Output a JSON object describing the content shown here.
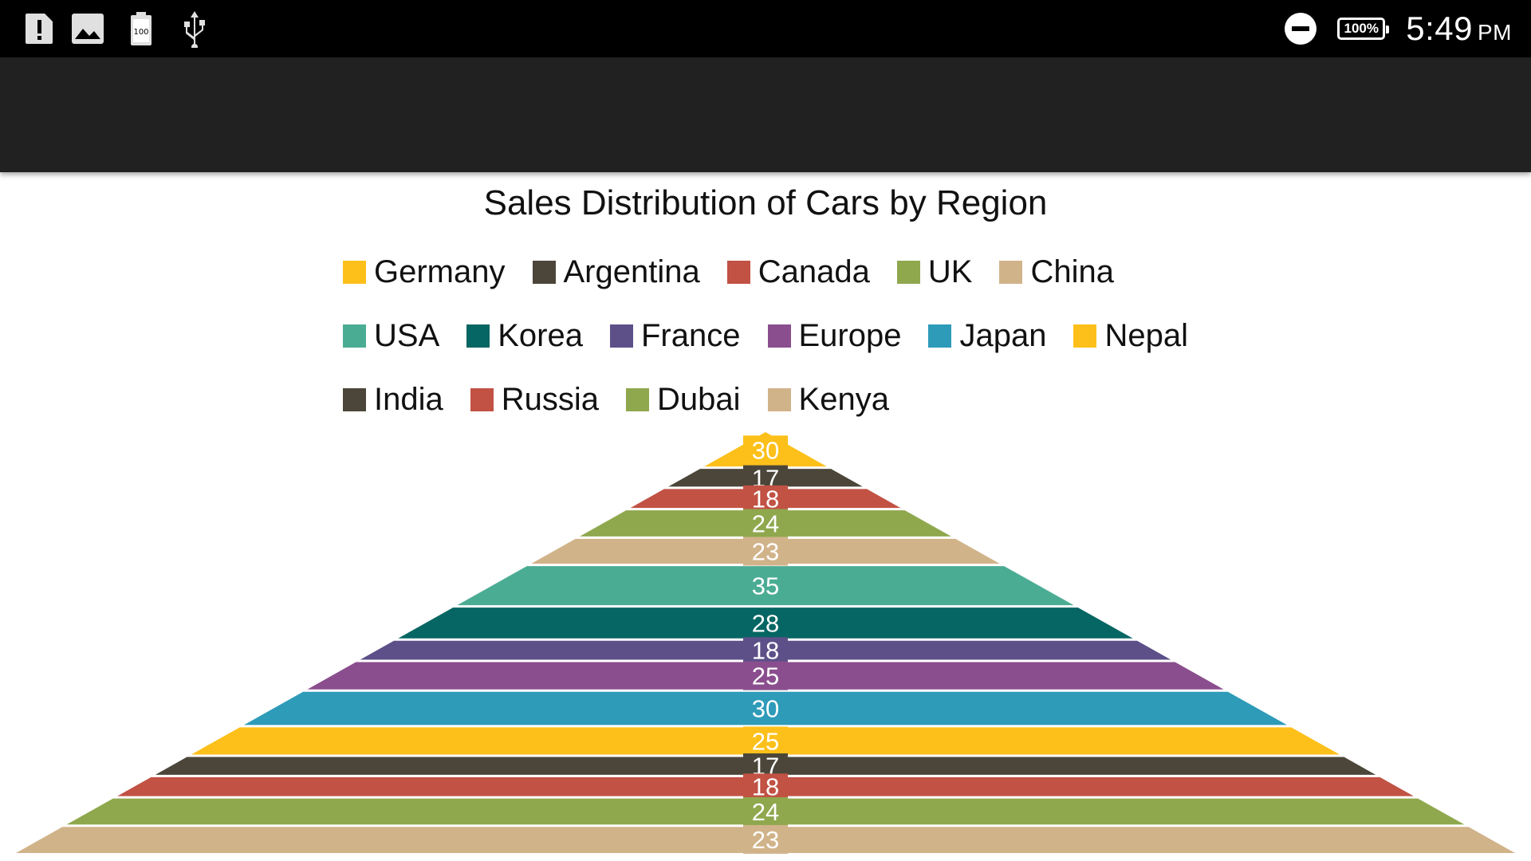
{
  "status_bar": {
    "icons": [
      "alert-icon",
      "image-icon",
      "battery-saver-icon",
      "usb-icon"
    ],
    "battery_text": "100%",
    "time": "5:49",
    "ampm": "PM"
  },
  "chart_data": {
    "type": "pyramid",
    "title": "Sales Distribution of Cars by Region",
    "legend_position": "top",
    "categories": [
      "Germany",
      "Argentina",
      "Canada",
      "UK",
      "China",
      "USA",
      "Korea",
      "France",
      "Europe",
      "Japan",
      "Nepal",
      "India",
      "Russia",
      "Dubai",
      "Kenya"
    ],
    "values": [
      30,
      17,
      18,
      24,
      23,
      35,
      28,
      18,
      25,
      30,
      25,
      17,
      18,
      24,
      23
    ],
    "colors": [
      "#FDC01A",
      "#4B4639",
      "#C15244",
      "#8FA84E",
      "#D1B38A",
      "#4BAC94",
      "#066663",
      "#5D5089",
      "#8A4E8E",
      "#2E9BB9",
      "#FDC01A",
      "#4B4639",
      "#C15244",
      "#8FA84E",
      "#D1B38A"
    ]
  }
}
